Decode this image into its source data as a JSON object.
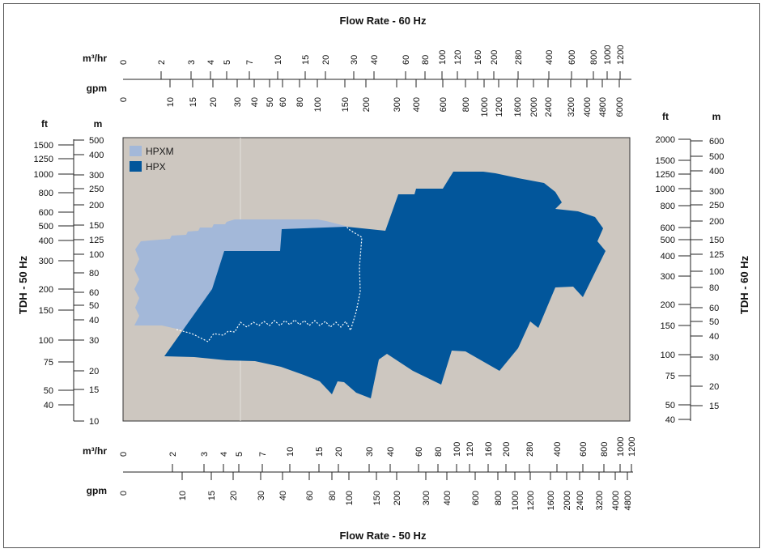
{
  "chart_data": {
    "type": "area",
    "titles": {
      "top": "Flow Rate - 60 Hz",
      "bottom": "Flow Rate - 50 Hz",
      "left": "TDH - 50 Hz",
      "right": "TDH - 60 Hz"
    },
    "units": {
      "m3hr": "m³/hr",
      "gpm": "gpm",
      "ft": "ft",
      "m": "m"
    },
    "top_axis": {
      "m3hr_ticks": [
        "0",
        "2",
        "3",
        "4",
        "5",
        "7",
        "10",
        "15",
        "20",
        "30",
        "40",
        "60",
        "80",
        "100",
        "120",
        "160",
        "200",
        "280",
        "400",
        "600",
        "800",
        "1000",
        "1200"
      ],
      "gpm_ticks": [
        "0",
        "10",
        "15",
        "20",
        "30",
        "40",
        "50",
        "60",
        "80",
        "100",
        "150",
        "200",
        "300",
        "400",
        "600",
        "800",
        "1000",
        "1200",
        "1600",
        "2000",
        "2400",
        "3200",
        "4000",
        "4800",
        "6000"
      ]
    },
    "bottom_axis": {
      "m3hr_ticks": [
        "0",
        "2",
        "3",
        "4",
        "5",
        "7",
        "10",
        "15",
        "20",
        "30",
        "40",
        "60",
        "80",
        "100",
        "120",
        "160",
        "200",
        "280",
        "400",
        "600",
        "800",
        "1000",
        "1200"
      ],
      "gpm_ticks": [
        "0",
        "10",
        "15",
        "20",
        "30",
        "40",
        "60",
        "80",
        "100",
        "150",
        "200",
        "300",
        "400",
        "600",
        "800",
        "1000",
        "1200",
        "1600",
        "2000",
        "2400",
        "3200",
        "4000",
        "4800"
      ]
    },
    "left_axis": {
      "ft_ticks": [
        "1500",
        "1250",
        "1000",
        "800",
        "600",
        "500",
        "400",
        "300",
        "200",
        "150",
        "100",
        "75",
        "50",
        "40"
      ],
      "m_ticks": [
        "500",
        "400",
        "300",
        "250",
        "200",
        "150",
        "125",
        "100",
        "80",
        "60",
        "50",
        "40",
        "30",
        "20",
        "15",
        "10"
      ]
    },
    "right_axis": {
      "ft_ticks": [
        "2000",
        "1500",
        "1250",
        "1000",
        "800",
        "600",
        "500",
        "400",
        "300",
        "200",
        "150",
        "100",
        "75",
        "50",
        "40"
      ],
      "m_ticks": [
        "600",
        "500",
        "400",
        "300",
        "250",
        "200",
        "150",
        "125",
        "100",
        "80",
        "60",
        "50",
        "40",
        "30",
        "20",
        "15"
      ]
    },
    "series": [
      {
        "name": "HPXM",
        "color": "#a3b8d9"
      },
      {
        "name": "HPX",
        "color": "#02569b"
      }
    ],
    "plot_background": "#cdc7c0"
  }
}
